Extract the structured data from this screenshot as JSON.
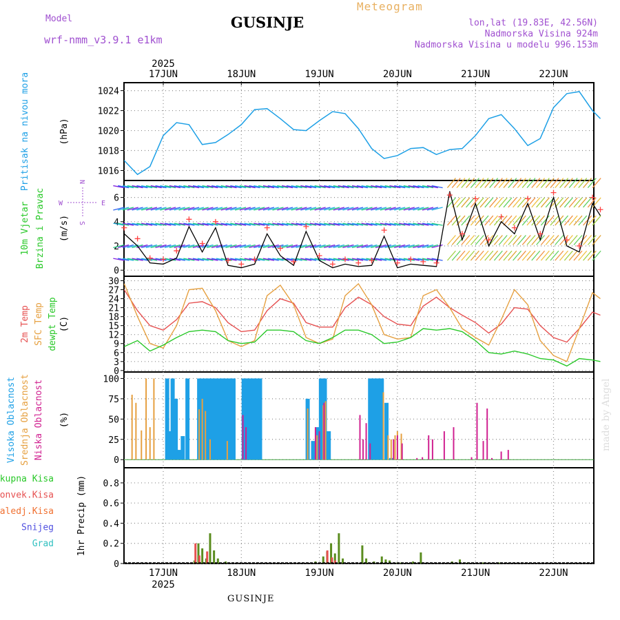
{
  "header": {
    "title": "GUSINJE",
    "subtitle": "Meteogram",
    "model_label": "Model",
    "model_name": "wrf-nmm_v3.9.1 e1km",
    "coords": "lon,lat (19.83E, 42.56N)",
    "elevation": "Nadmorska Visina 924m",
    "model_elevation": "Nadmorska Visina u modelu 996.153m",
    "footer": "GUSINJE",
    "credit": "made by Angel"
  },
  "colors": {
    "pressure": "#1ea0e6",
    "temp2m": "#e65050",
    "sfc": "#e6a040",
    "dew": "#28c828",
    "wind_speed": "#000000",
    "gust": "#ff4040",
    "high_cloud": "#1ea0e6",
    "mid_cloud": "#e6a040",
    "low_cloud": "#d02090",
    "precip_total": "#5a8c1e",
    "precip_conv": "#e65050",
    "grid": "#888888"
  },
  "chart_data": [
    {
      "type": "line",
      "panel": "pressure",
      "ylabel_left": "Pritisak na nivou mora",
      "ylabel": "(hPa)",
      "ylim": [
        1015,
        1024.8
      ],
      "yticks": [
        "1016",
        "1018",
        "1020",
        "1022",
        "1024"
      ],
      "top_axis_year": "2025",
      "xticks": [
        "17JUN",
        "18JUN",
        "19JUN",
        "20JUN",
        "21JUN",
        "22JUN"
      ],
      "x_days": [
        0.0,
        0.17,
        0.33,
        0.5,
        0.67,
        0.83,
        1.0,
        1.17,
        1.33,
        1.5,
        1.67,
        1.83,
        2.0,
        2.17,
        2.33,
        2.5,
        2.67,
        2.83,
        3.0,
        3.17,
        3.33,
        3.5,
        3.67,
        3.83,
        4.0,
        4.17,
        4.33,
        4.5,
        4.67,
        4.83,
        5.0,
        5.17,
        5.33,
        5.5,
        5.67,
        5.83,
        6.0,
        6.1
      ],
      "series": [
        {
          "values": [
            1017.0,
            1015.6,
            1016.4,
            1019.5,
            1020.8,
            1020.6,
            1018.6,
            1018.8,
            1019.6,
            1020.6,
            1022.1,
            1022.2,
            1021.2,
            1020.1,
            1020.0,
            1021.0,
            1021.9,
            1021.7,
            1020.2,
            1018.2,
            1017.2,
            1017.5,
            1018.2,
            1018.3,
            1017.6,
            1018.1,
            1018.2,
            1019.5,
            1021.2,
            1021.6,
            1020.2,
            1018.5,
            1019.2,
            1022.3,
            1023.7,
            1023.9,
            1022.0,
            1021.2
          ]
        }
      ]
    },
    {
      "type": "line",
      "panel": "wind",
      "ylabel_left": [
        "10m Vjetar",
        "Brzina i Pravac"
      ],
      "ylabel": "(m/s)",
      "compass": {
        "n": "N",
        "s": "S",
        "e": "E",
        "w": "W"
      },
      "ylim": [
        -0.5,
        7.4
      ],
      "yticks": [
        "0",
        "2",
        "4",
        "6"
      ],
      "x_days": [
        0.0,
        0.17,
        0.33,
        0.5,
        0.67,
        0.83,
        1.0,
        1.17,
        1.33,
        1.5,
        1.67,
        1.83,
        2.0,
        2.17,
        2.33,
        2.5,
        2.67,
        2.83,
        3.0,
        3.17,
        3.33,
        3.5,
        3.67,
        3.83,
        4.0,
        4.17,
        4.33,
        4.5,
        4.67,
        4.83,
        5.0,
        5.17,
        5.33,
        5.5,
        5.67,
        5.83,
        6.0,
        6.1
      ],
      "series": [
        {
          "name": "speed",
          "values": [
            3.0,
            2.0,
            0.6,
            0.5,
            1.0,
            3.6,
            1.5,
            3.5,
            0.4,
            0.2,
            0.5,
            3.0,
            1.2,
            0.4,
            3.2,
            0.8,
            0.2,
            0.5,
            0.3,
            0.4,
            2.8,
            0.2,
            0.5,
            0.4,
            0.3,
            6.5,
            2.5,
            5.5,
            2.0,
            4.0,
            3.0,
            5.5,
            2.5,
            6.0,
            2.0,
            1.5,
            5.5,
            4.5
          ]
        },
        {
          "name": "gust",
          "values": [
            3.5,
            2.6,
            1.0,
            0.9,
            1.6,
            4.2,
            2.2,
            4.0,
            0.8,
            0.5,
            0.9,
            3.5,
            1.8,
            0.7,
            3.6,
            1.2,
            0.5,
            0.9,
            0.6,
            0.8,
            3.3,
            0.6,
            0.9,
            0.7,
            0.6,
            6.2,
            3.0,
            5.9,
            2.5,
            4.4,
            3.5,
            5.9,
            3.0,
            6.4,
            2.5,
            2.0,
            6.0,
            5.0
          ]
        }
      ]
    },
    {
      "type": "line",
      "panel": "temperature",
      "ylabel_left": [
        "2m Temp",
        "SFC Temp",
        "dewpt Temp"
      ],
      "ylabel": "(C)",
      "ylim": [
        -0.5,
        31.5
      ],
      "yticks": [
        "0",
        "3",
        "6",
        "9",
        "12",
        "15",
        "18",
        "21",
        "24",
        "27",
        "30"
      ],
      "x_days": [
        0.0,
        0.17,
        0.33,
        0.5,
        0.67,
        0.83,
        1.0,
        1.17,
        1.33,
        1.5,
        1.67,
        1.83,
        2.0,
        2.17,
        2.33,
        2.5,
        2.67,
        2.83,
        3.0,
        3.17,
        3.33,
        3.5,
        3.67,
        3.83,
        4.0,
        4.17,
        4.33,
        4.5,
        4.67,
        4.83,
        5.0,
        5.17,
        5.33,
        5.5,
        5.67,
        5.83,
        6.0,
        6.1
      ],
      "series": [
        {
          "name": "2m Temp",
          "values": [
            27.0,
            20.0,
            15.0,
            13.5,
            17.0,
            22.5,
            23.0,
            21.0,
            16.0,
            13.0,
            13.5,
            20.0,
            24.0,
            22.5,
            16.0,
            14.5,
            14.5,
            21.0,
            24.5,
            22.0,
            18.0,
            15.5,
            15.0,
            21.5,
            24.5,
            21.0,
            18.5,
            16.0,
            12.5,
            15.5,
            21.0,
            20.5,
            15.0,
            11.0,
            9.5,
            14.0,
            19.5,
            18.5
          ]
        },
        {
          "name": "SFC Temp",
          "values": [
            29.0,
            18.0,
            9.0,
            7.5,
            15.0,
            27.0,
            27.5,
            20.0,
            10.0,
            8.0,
            10.0,
            25.0,
            28.5,
            22.0,
            11.0,
            9.0,
            10.5,
            25.0,
            29.0,
            22.0,
            12.0,
            10.5,
            11.0,
            25.0,
            27.0,
            21.0,
            14.0,
            11.0,
            8.5,
            17.0,
            27.0,
            22.0,
            10.0,
            5.0,
            3.0,
            14.0,
            26.0,
            24.0
          ]
        },
        {
          "name": "dewpt Temp",
          "values": [
            8.0,
            10.0,
            6.5,
            8.5,
            11.0,
            13.0,
            13.5,
            13.0,
            10.0,
            9.0,
            9.5,
            13.5,
            13.5,
            13.0,
            10.0,
            9.0,
            11.0,
            13.5,
            13.5,
            12.0,
            9.0,
            9.5,
            11.0,
            14.0,
            13.5,
            14.0,
            13.0,
            10.0,
            6.0,
            5.5,
            6.5,
            5.5,
            4.0,
            3.5,
            1.5,
            4.0,
            3.5,
            3.0
          ]
        }
      ]
    },
    {
      "type": "bar",
      "panel": "clouds",
      "ylabel_left": [
        "Visoka Oblacnost",
        "Srednja Oblacnost",
        "Niska Oblacnost"
      ],
      "ylabel": "(%)",
      "ylim": [
        -10,
        108
      ],
      "yticks": [
        "0",
        "25",
        "50",
        "75",
        "100"
      ],
      "series": [
        {
          "name": "Visoka Oblacnost",
          "x_days": [
            0.55,
            0.58,
            0.62,
            0.66,
            0.7,
            0.75,
            0.81,
            0.96,
            1.0,
            1.04,
            1.07,
            1.1,
            1.13,
            1.16,
            1.19,
            1.22,
            1.25,
            1.28,
            1.31,
            1.34,
            1.37,
            1.4,
            1.53,
            1.56,
            1.59,
            1.62,
            1.65,
            1.68,
            1.71,
            1.74,
            2.35,
            2.42,
            2.47,
            2.52,
            2.57,
            2.62,
            3.15,
            3.18,
            3.21,
            3.24,
            3.27,
            3.3,
            3.36,
            3.42
          ],
          "values": [
            100,
            35,
            100,
            75,
            12,
            29,
            100,
            100,
            100,
            100,
            100,
            100,
            100,
            100,
            100,
            100,
            100,
            100,
            100,
            100,
            100,
            100,
            100,
            100,
            100,
            100,
            100,
            100,
            100,
            100,
            75,
            23,
            40,
            100,
            100,
            35,
            100,
            100,
            100,
            100,
            100,
            100,
            70,
            2
          ]
        },
        {
          "name": "Srednja Oblacnost",
          "x_days": [
            0.1,
            0.15,
            0.22,
            0.28,
            0.33,
            0.38,
            0.96,
            1.0,
            1.04,
            1.1,
            1.32,
            2.35,
            2.47,
            2.55,
            2.58,
            3.32,
            3.38,
            3.42,
            3.47,
            3.5,
            3.55
          ],
          "values": [
            80,
            70,
            36,
            100,
            40,
            100,
            62,
            75,
            60,
            25,
            23,
            63,
            30,
            67,
            72,
            83,
            30,
            25,
            30,
            35,
            32
          ]
        },
        {
          "name": "Niska Oblacnost",
          "x_days": [
            1.52,
            1.56,
            2.45,
            2.5,
            2.56,
            3.02,
            3.06,
            3.1,
            3.15,
            3.45,
            3.5,
            3.56,
            3.75,
            3.82,
            3.9,
            3.95,
            4.1,
            4.22,
            4.45,
            4.52,
            4.6,
            4.65,
            4.71,
            4.83,
            4.92
          ],
          "values": [
            55,
            40,
            40,
            35,
            70,
            55,
            25,
            45,
            20,
            25,
            30,
            20,
            2,
            3,
            30,
            25,
            35,
            40,
            3,
            70,
            23,
            63,
            2,
            10,
            12
          ]
        }
      ]
    },
    {
      "type": "bar",
      "panel": "precip",
      "ylabel_left": [
        "Ukupna Kisa",
        "Konvek.Kisa",
        "Zaledj.Kisa",
        "Snijeg",
        "Grad"
      ],
      "ylabel": "1hr Precip (mm)",
      "ylim": [
        0,
        0.95
      ],
      "yticks": [
        "0",
        "0.2",
        "0.4",
        "0.6",
        "0.8"
      ],
      "bottom_axis_year": "2025",
      "xticks": [
        "17JUN",
        "18JUN",
        "19JUN",
        "20JUN",
        "21JUN",
        "22JUN"
      ],
      "series": [
        {
          "name": "Ukupna Kisa",
          "x_days": [
            0.9,
            0.95,
            1.0,
            1.05,
            1.1,
            1.15,
            1.2,
            1.3,
            2.45,
            2.55,
            2.6,
            2.65,
            2.7,
            2.75,
            2.8,
            3.05,
            3.1,
            3.2,
            3.3,
            3.35,
            3.4,
            3.5,
            3.55,
            3.7,
            3.8,
            4.2,
            4.3,
            4.4,
            4.6,
            4.8
          ],
          "values": [
            0.03,
            0.2,
            0.15,
            0.05,
            0.3,
            0.13,
            0.05,
            0.02,
            0.02,
            0.07,
            0.12,
            0.2,
            0.1,
            0.3,
            0.05,
            0.18,
            0.05,
            0.02,
            0.07,
            0.04,
            0.03,
            0.01,
            0.01,
            0.02,
            0.11,
            0.02,
            0.04,
            0.01,
            0.01,
            0.01
          ]
        },
        {
          "name": "Konvek.Kisa",
          "x_days": [
            0.93,
            0.98,
            1.08,
            2.62,
            2.68,
            2.72
          ],
          "values": [
            0.2,
            0.08,
            0.12,
            0.13,
            0.06,
            0.03
          ]
        }
      ]
    }
  ]
}
